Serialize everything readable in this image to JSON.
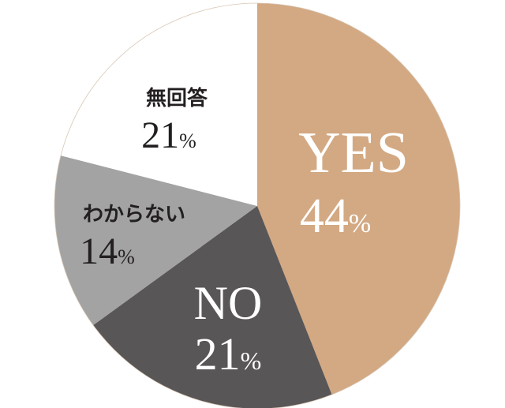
{
  "chart_data": {
    "type": "pie",
    "start": "top",
    "direction": "clockwise",
    "slices": [
      {
        "label": "YES",
        "value": 44,
        "value_label": "44",
        "color": "#d3a983",
        "text_color": "#ffffff"
      },
      {
        "label": "NO",
        "value": 21,
        "value_label": "21",
        "color": "#595657",
        "text_color": "#ffffff"
      },
      {
        "label": "わからない",
        "value": 14,
        "value_label": "14",
        "color": "#a3a3a3",
        "text_color": "#231f20"
      },
      {
        "label": "無回答",
        "value": 21,
        "value_label": "21",
        "color": "#ffffff",
        "text_color": "#231f20"
      }
    ],
    "unit": "%",
    "outline_color": "#d8c6b4"
  }
}
